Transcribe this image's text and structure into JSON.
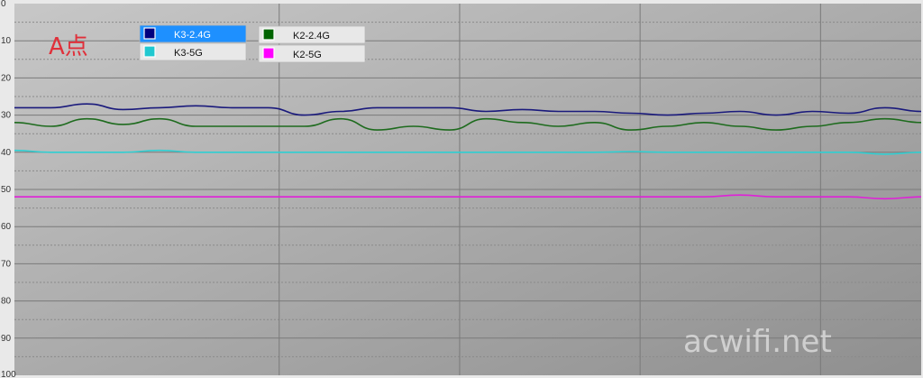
{
  "chart_data": {
    "type": "line",
    "title": "A点",
    "ylim": [
      0,
      100
    ],
    "yticks": [
      0,
      10,
      20,
      30,
      40,
      50,
      60,
      70,
      80,
      90,
      100
    ],
    "y_inverted": true,
    "grid": true,
    "legend_placement": "top-left",
    "x": [
      0,
      0.04,
      0.08,
      0.12,
      0.16,
      0.2,
      0.24,
      0.28,
      0.32,
      0.36,
      0.4,
      0.44,
      0.48,
      0.52,
      0.56,
      0.6,
      0.64,
      0.68,
      0.72,
      0.76,
      0.8,
      0.84,
      0.88,
      0.92,
      0.96,
      1.0
    ],
    "series": [
      {
        "name": "K3-2.4G",
        "color": "#1a1a7c",
        "swatch": "#000080",
        "values": [
          28,
          28,
          27,
          28.5,
          28,
          27.5,
          28,
          28,
          30,
          29,
          28,
          28,
          28,
          29,
          28.5,
          29,
          29,
          29.5,
          30,
          29.5,
          29,
          30,
          29,
          29.5,
          28,
          29
        ]
      },
      {
        "name": "K2-2.4G",
        "color": "#1e6b1e",
        "swatch": "#006400",
        "values": [
          32,
          33,
          31,
          32.5,
          31,
          33,
          33,
          33,
          33,
          31,
          34,
          33,
          34,
          31,
          32,
          33,
          32,
          34,
          33,
          32,
          33,
          34,
          33,
          32,
          31,
          32
        ]
      },
      {
        "name": "K3-5G",
        "color": "#2fcfd2",
        "swatch": "#20c8d0",
        "values": [
          39.5,
          40,
          40,
          40,
          39.5,
          40,
          40,
          40,
          40,
          40,
          40,
          40,
          40,
          40,
          40,
          40,
          40,
          39.8,
          40,
          40,
          40,
          40,
          40,
          40,
          40.5,
          40
        ]
      },
      {
        "name": "K2-5G",
        "color": "#e020d8",
        "swatch": "#ff00ff",
        "values": [
          52,
          52,
          52,
          52,
          52,
          52,
          52,
          52,
          52,
          52,
          52,
          52,
          52,
          52,
          52,
          52,
          52,
          52,
          52,
          52,
          51.5,
          52,
          52,
          52,
          52.5,
          52
        ]
      }
    ]
  },
  "watermark": "acwifi.net"
}
